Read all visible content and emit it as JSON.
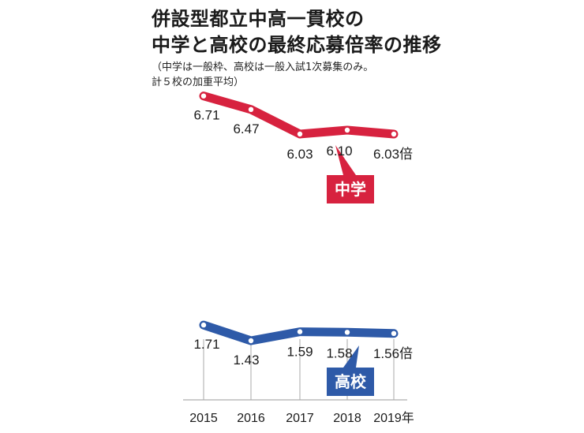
{
  "header": {
    "title_line1": "併設型都立中高一貫校の",
    "title_line2": "中学と高校の最終応募倍率の推移",
    "note_line1": "（中学は一般枠、高校は一般入試1次募集のみ。",
    "note_line2": "計５校の加重平均）"
  },
  "chart_data": {
    "type": "line",
    "categories": [
      "2015",
      "2016",
      "2017",
      "2018",
      "2019年"
    ],
    "series": [
      {
        "name": "中学",
        "values": [
          6.71,
          6.47,
          6.03,
          6.1,
          6.03
        ],
        "labels": [
          "6.71",
          "6.47",
          "6.03",
          "6.10",
          "6.03倍"
        ],
        "color": "#d7223f"
      },
      {
        "name": "高校",
        "values": [
          1.71,
          1.43,
          1.59,
          1.58,
          1.56
        ],
        "labels": [
          "1.71",
          "1.43",
          "1.59",
          "1.58",
          "1.56倍"
        ],
        "color": "#2e5aa8"
      }
    ],
    "unit": "倍",
    "grid": false,
    "legend": "callout tags under each line"
  }
}
